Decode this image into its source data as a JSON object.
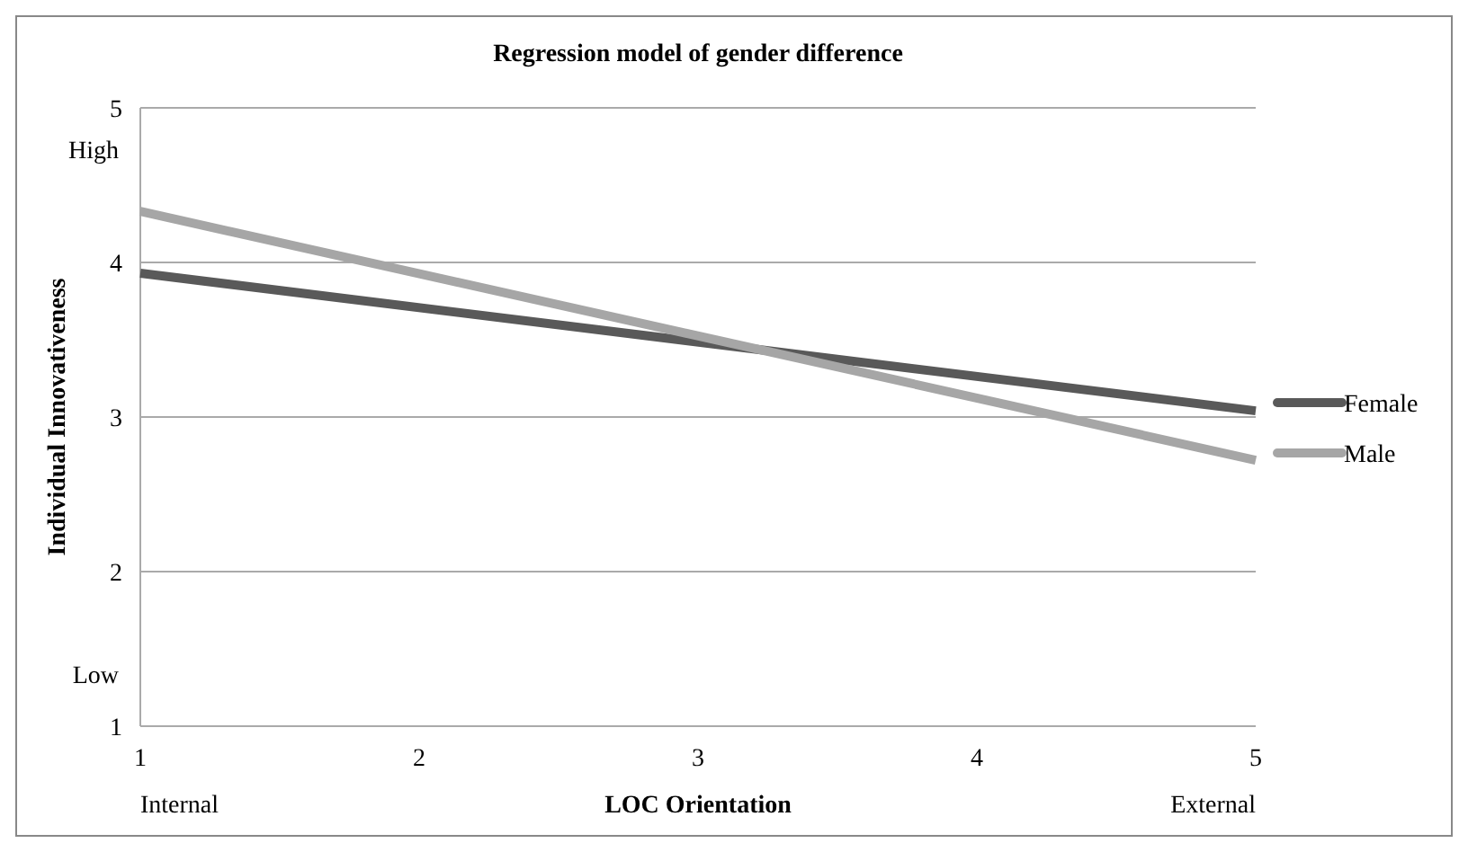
{
  "chart_data": {
    "type": "line",
    "title": "Regression model of gender difference",
    "xlabel": "LOC Orientation",
    "ylabel": "Individual Innovativeness",
    "x": [
      1,
      5
    ],
    "series": [
      {
        "name": "Female",
        "color": "#595959",
        "values": [
          3.93,
          3.04
        ]
      },
      {
        "name": "Male",
        "color": "#a6a6a6",
        "values": [
          4.33,
          2.72
        ]
      }
    ],
    "xlim": [
      1,
      5
    ],
    "xticks": [
      1,
      2,
      3,
      4,
      5
    ],
    "ylim": [
      1,
      5
    ],
    "yticks": [
      1,
      2,
      3,
      4,
      5
    ],
    "grid": "y",
    "legend": "right",
    "marker": "none",
    "line_style": "solid",
    "annotations": [
      "High",
      "Low",
      "Internal",
      "External"
    ]
  }
}
